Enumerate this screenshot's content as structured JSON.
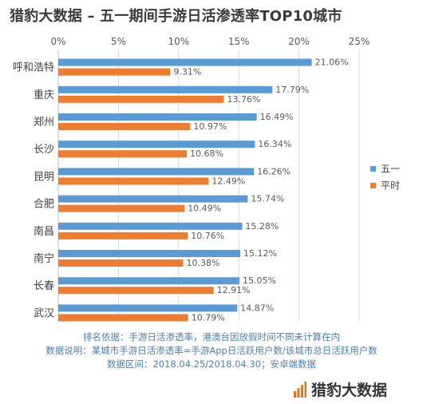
{
  "title": "猎豹大数据 – 五一期间手游日活渗透率TOP10城市",
  "chart_data": {
    "type": "bar",
    "orientation": "horizontal",
    "categories": [
      "呼和浩特",
      "重庆",
      "郑州",
      "长沙",
      "昆明",
      "合肥",
      "南昌",
      "南宁",
      "长春",
      "武汉"
    ],
    "series": [
      {
        "name": "五一",
        "color": "#5b9bd5",
        "values": [
          21.06,
          17.79,
          16.49,
          16.34,
          16.26,
          15.74,
          15.28,
          15.12,
          15.05,
          14.87
        ]
      },
      {
        "name": "平时",
        "color": "#ed7d31",
        "values": [
          9.31,
          13.76,
          10.97,
          10.68,
          12.49,
          10.49,
          10.76,
          10.38,
          12.91,
          10.79
        ]
      }
    ],
    "xlim": [
      0,
      25
    ],
    "xticks": [
      0,
      5,
      10,
      15,
      20,
      25
    ],
    "tick_suffix": "%",
    "value_suffix": "%",
    "grid": true,
    "legend_position": "right"
  },
  "notes": [
    "排名依据：手游日活渗透率，港澳台因放假时间不同未计算在内",
    "数据说明：某城市手游日活渗透率=手游App日活跃用户数/该城市总日活跃用户数",
    "数据区间：2018.04.25/2018.04.30；安卓端数据"
  ],
  "brand": {
    "name": "猎豹大数据",
    "logo_color": "#e8731c",
    "icon": "bar-logo-icon"
  }
}
